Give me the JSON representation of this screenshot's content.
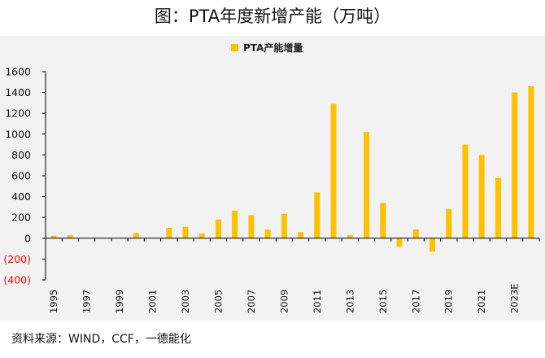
{
  "title": "图：PTA年度新增产能（万吨）",
  "footer": "资料来源：WIND，CCF，一德能化",
  "colors": {
    "bar": "#FFC000",
    "panel": "#F2F2F2",
    "axis": "#000000",
    "negative_tick": "#FF0000"
  },
  "chart_data": {
    "type": "bar",
    "title": "图：PTA年度新增产能（万吨）",
    "xlabel": "",
    "ylabel": "",
    "legend": {
      "position": "top-center",
      "entries": [
        "PTA产能增量"
      ]
    },
    "grid": false,
    "ylim": [
      -400,
      1600
    ],
    "y_ticks": [
      -400,
      -200,
      0,
      200,
      400,
      600,
      800,
      1000,
      1200,
      1400,
      1600
    ],
    "y_tick_labels": [
      "(400)",
      "(200)",
      "0",
      "200",
      "400",
      "600",
      "800",
      "1000",
      "1200",
      "1400",
      "1600"
    ],
    "categories": [
      "1995",
      "1996",
      "1997",
      "1998",
      "1999",
      "2000",
      "2001",
      "2002",
      "2003",
      "2004",
      "2005",
      "2006",
      "2007",
      "2008",
      "2009",
      "2010",
      "2011",
      "2012",
      "2013",
      "2014",
      "2015",
      "2016",
      "2017",
      "2018",
      "2019",
      "2020",
      "2021",
      "2022",
      "2023E",
      "2024E"
    ],
    "x_tick_labels": [
      "1995",
      "",
      "1997",
      "",
      "1999",
      "",
      "2001",
      "",
      "2003",
      "",
      "2005",
      "",
      "2007",
      "",
      "2009",
      "",
      "2011",
      "",
      "2013",
      "",
      "2015",
      "",
      "2017",
      "",
      "2019",
      "",
      "2021",
      "",
      "2023E",
      ""
    ],
    "series": [
      {
        "name": "PTA产能增量",
        "values": [
          25,
          30,
          0,
          0,
          0,
          50,
          0,
          100,
          110,
          45,
          180,
          265,
          220,
          85,
          235,
          60,
          440,
          1290,
          30,
          1020,
          340,
          -80,
          85,
          -130,
          280,
          900,
          800,
          580,
          1400,
          1460
        ]
      }
    ]
  }
}
